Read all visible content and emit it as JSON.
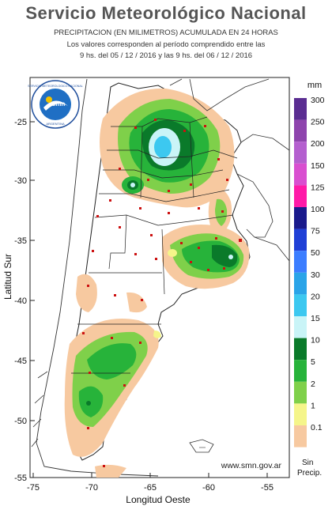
{
  "header": {
    "title": "Servicio Meteorológico Nacional",
    "subtitle": "PRECIPITACION (EN MILIMETROS) ACUMULADA EN 24 HORAS",
    "note_line1": "Los valores corresponden al período comprendido entre las",
    "note_line2": "9 hs. del 05 / 12 / 2016  y las 9 hs. del 06 / 12 / 2016"
  },
  "logo": {
    "text_top": "SERVICIO METEOROLOGICO NACIONAL",
    "text_bottom": "ARGENTINA",
    "center_text": "smn"
  },
  "axes": {
    "ylabel": "Latitud Sur",
    "xlabel": "Longitud Oeste",
    "y_ticks": [
      "-25",
      "-30",
      "-35",
      "-40",
      "-45",
      "-50",
      "-55"
    ],
    "x_ticks": [
      "-75",
      "-70",
      "-65",
      "-60",
      "-55"
    ],
    "lat_range": [
      -22,
      -55
    ],
    "lon_range": [
      -75,
      -53
    ]
  },
  "website": "www.smn.gov.ar",
  "legend": {
    "unit": "mm",
    "levels": [
      {
        "label": "300",
        "color": "#5a2d91"
      },
      {
        "label": "250",
        "color": "#8e44ad"
      },
      {
        "label": "200",
        "color": "#b45fcf"
      },
      {
        "label": "150",
        "color": "#d94fd0"
      },
      {
        "label": "125",
        "color": "#ff1aa8"
      },
      {
        "label": "100",
        "color": "#1a1a8c"
      },
      {
        "label": "75",
        "color": "#1f3fd6"
      },
      {
        "label": "50",
        "color": "#3b7dff"
      },
      {
        "label": "30",
        "color": "#2aa4e8"
      },
      {
        "label": "20",
        "color": "#3cc8f0"
      },
      {
        "label": "15",
        "color": "#c9f4f7"
      },
      {
        "label": "10",
        "color": "#0a7a2a"
      },
      {
        "label": "5",
        "color": "#27b33a"
      },
      {
        "label": "2",
        "color": "#7fd04a"
      },
      {
        "label": "1",
        "color": "#f5f58a"
      },
      {
        "label": "0.1",
        "color": "#f7c9a0"
      }
    ],
    "no_precip_label_1": "Sin",
    "no_precip_label_2": "Precip."
  }
}
